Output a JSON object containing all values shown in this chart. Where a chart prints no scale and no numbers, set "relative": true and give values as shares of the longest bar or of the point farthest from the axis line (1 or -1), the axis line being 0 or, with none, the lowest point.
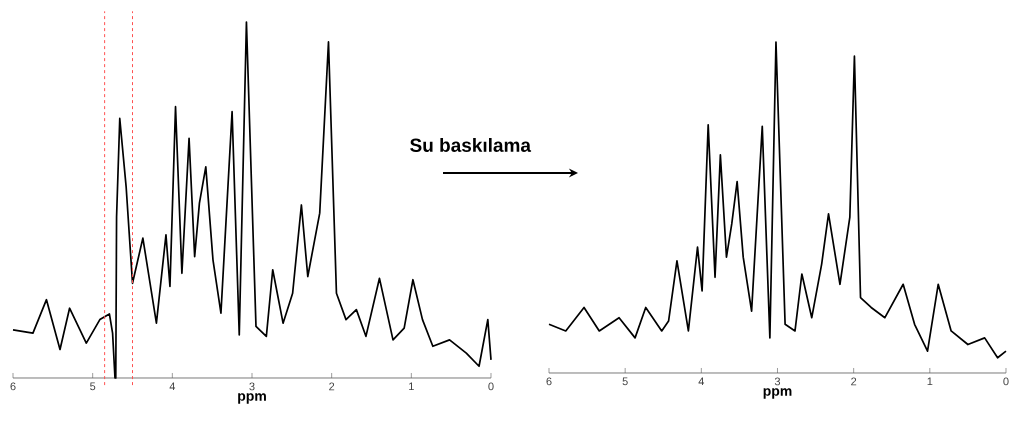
{
  "chart_data": [
    {
      "type": "line",
      "relative": true,
      "xlabel": "ppm",
      "xlim": [
        6,
        0
      ],
      "xticks": [
        6,
        5,
        4,
        3,
        2,
        1,
        0
      ],
      "x": [
        6.0,
        5.75,
        5.58,
        5.41,
        5.29,
        5.08,
        4.91,
        4.79,
        4.75,
        4.72,
        4.71,
        4.7,
        4.66,
        4.58,
        4.5,
        4.37,
        4.2,
        4.08,
        4.03,
        3.96,
        3.88,
        3.79,
        3.72,
        3.66,
        3.58,
        3.49,
        3.39,
        3.25,
        3.16,
        3.07,
        2.95,
        2.82,
        2.74,
        2.61,
        2.49,
        2.38,
        2.3,
        2.15,
        2.04,
        1.94,
        1.82,
        1.69,
        1.57,
        1.4,
        1.23,
        1.09,
        0.98,
        0.86,
        0.73,
        0.52,
        0.31,
        0.15,
        0.04,
        0.0
      ],
      "series": [
        {
          "color": "#000000",
          "values": [
            0.135,
            0.126,
            0.22,
            0.08,
            0.196,
            0.098,
            0.164,
            0.18,
            0.126,
            0,
            0,
            0.453,
            0.729,
            0.537,
            0.266,
            0.393,
            0.154,
            0.402,
            0.257,
            0.762,
            0.294,
            0.673,
            0.341,
            0.491,
            0.593,
            0.332,
            0.182,
            0.748,
            0.121,
            1.0,
            0.145,
            0.117,
            0.304,
            0.154,
            0.238,
            0.486,
            0.285,
            0.463,
            0.944,
            0.238,
            0.164,
            0.192,
            0.117,
            0.28,
            0.107,
            0.14,
            0.276,
            0.164,
            0.089,
            0.107,
            0.07,
            0.033,
            0.164,
            0.051
          ]
        }
      ],
      "ref_lines": [
        {
          "axis": "x",
          "value": 4.85,
          "color": "#ff5050",
          "line_style": "dashed"
        },
        {
          "axis": "x",
          "value": 4.5,
          "color": "#ff5050",
          "line_style": "dashed"
        }
      ]
    },
    {
      "type": "line",
      "relative": true,
      "xlabel": "ppm",
      "xlim": [
        6,
        0
      ],
      "xticks": [
        6,
        5,
        4,
        3,
        2,
        1,
        0
      ],
      "annotations": [
        "Su baskılama"
      ],
      "x": [
        6.0,
        5.78,
        5.54,
        5.34,
        5.08,
        4.87,
        4.73,
        4.52,
        4.43,
        4.32,
        4.17,
        4.05,
        3.99,
        3.91,
        3.82,
        3.75,
        3.67,
        3.6,
        3.53,
        3.45,
        3.34,
        3.2,
        3.1,
        3.02,
        2.9,
        2.77,
        2.68,
        2.55,
        2.42,
        2.33,
        2.18,
        2.05,
        1.99,
        1.91,
        1.77,
        1.59,
        1.35,
        1.2,
        1.03,
        0.89,
        0.72,
        0.5,
        0.28,
        0.11,
        0.0
      ],
      "series": [
        {
          "color": "#000000",
          "values": [
            0.147,
            0.127,
            0.198,
            0.127,
            0.167,
            0.106,
            0.198,
            0.127,
            0.157,
            0.339,
            0.127,
            0.38,
            0.248,
            0.75,
            0.289,
            0.659,
            0.35,
            0.451,
            0.578,
            0.35,
            0.187,
            0.745,
            0.106,
            1.0,
            0.147,
            0.127,
            0.299,
            0.167,
            0.329,
            0.481,
            0.268,
            0.471,
            0.957,
            0.228,
            0.198,
            0.167,
            0.268,
            0.147,
            0.066,
            0.268,
            0.127,
            0.086,
            0.106,
            0.046,
            0.066
          ]
        }
      ]
    }
  ]
}
